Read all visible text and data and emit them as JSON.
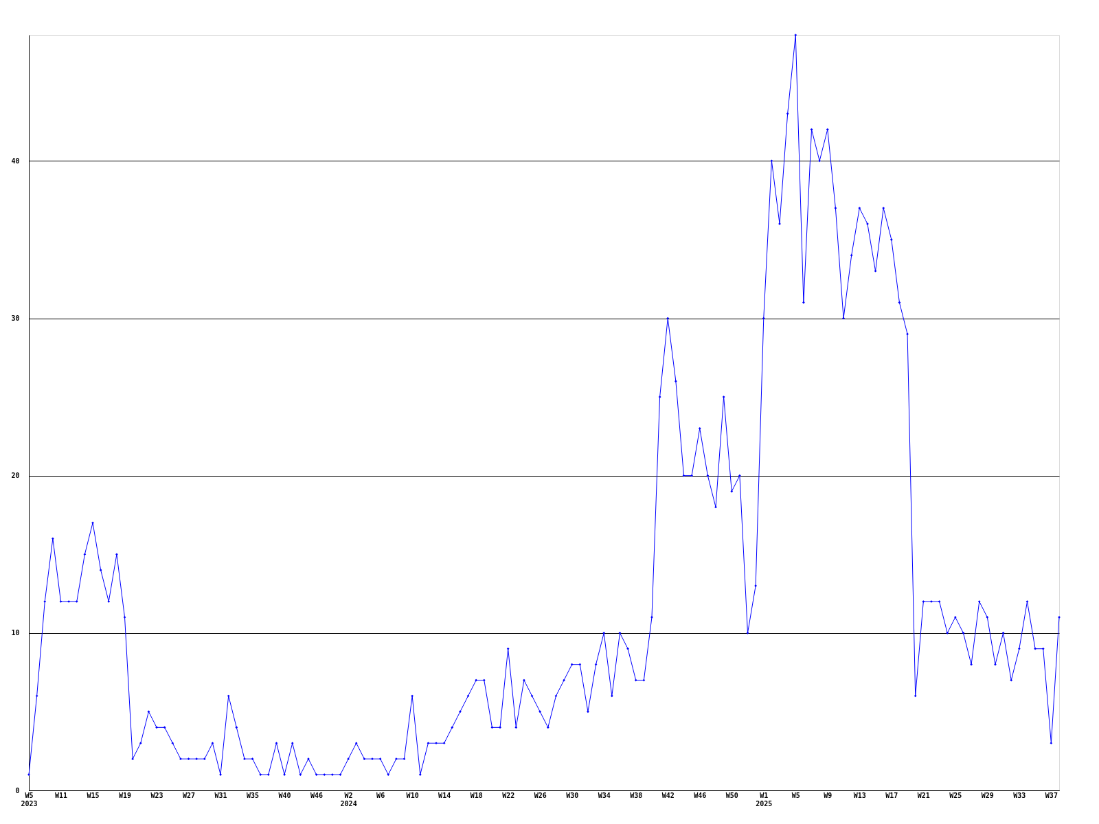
{
  "chart_data": {
    "type": "line",
    "categories": [
      "W5\n2023",
      null,
      null,
      null,
      "W11",
      null,
      null,
      null,
      "W15",
      null,
      null,
      null,
      "W19",
      null,
      null,
      null,
      "W23",
      null,
      null,
      null,
      "W27",
      null,
      null,
      null,
      "W31",
      null,
      null,
      null,
      "W35",
      null,
      null,
      null,
      "W40",
      null,
      null,
      null,
      "W46",
      null,
      null,
      null,
      "W2\n2024",
      null,
      null,
      null,
      "W6",
      null,
      null,
      null,
      "W10",
      null,
      null,
      null,
      "W14",
      null,
      null,
      null,
      "W18",
      null,
      null,
      null,
      "W22",
      null,
      null,
      null,
      "W26",
      null,
      null,
      null,
      "W30",
      null,
      null,
      null,
      "W34",
      null,
      null,
      null,
      "W38",
      null,
      null,
      null,
      "W42",
      null,
      null,
      null,
      "W46",
      null,
      null,
      null,
      "W50",
      null,
      null,
      null,
      "W1\n2025",
      null,
      null,
      null,
      "W5",
      null,
      null,
      null,
      "W9",
      null,
      null,
      null,
      "W13",
      null,
      null,
      null,
      "W17",
      null,
      null,
      null,
      "W21",
      null,
      null,
      null,
      "W25",
      null,
      null,
      null,
      "W29",
      null,
      null,
      null,
      "W33",
      null,
      null,
      null,
      "W37",
      null
    ],
    "series": [
      {
        "color": "#0000ff",
        "values": [
          1,
          6,
          12,
          16,
          12,
          12,
          12,
          15,
          17,
          14,
          12,
          15,
          11,
          2,
          3,
          5,
          4,
          4,
          3,
          2,
          2,
          2,
          2,
          3,
          1,
          6,
          4,
          2,
          2,
          1,
          1,
          3,
          1,
          3,
          1,
          2,
          1,
          1,
          1,
          1,
          2,
          3,
          2,
          2,
          2,
          1,
          2,
          2,
          6,
          1,
          3,
          3,
          3,
          4,
          5,
          6,
          7,
          7,
          4,
          4,
          9,
          4,
          7,
          6,
          5,
          4,
          6,
          7,
          8,
          8,
          5,
          8,
          10,
          6,
          10,
          9,
          7,
          7,
          11,
          25,
          30,
          26,
          20,
          20,
          23,
          20,
          18,
          25,
          19,
          20,
          10,
          13,
          30,
          40,
          36,
          43,
          48,
          31,
          42,
          40,
          42,
          37,
          30,
          34,
          37,
          36,
          33,
          37,
          35,
          31,
          29,
          6,
          12,
          12,
          12,
          10,
          11,
          10,
          8,
          12,
          11,
          8,
          10,
          7,
          9,
          12,
          9,
          9,
          3,
          11
        ]
      }
    ],
    "ylim": [
      0,
      48
    ],
    "yticks": [
      0,
      10,
      20,
      30,
      40
    ],
    "grid": "y",
    "marker": "diamond",
    "line_style": "solid"
  }
}
